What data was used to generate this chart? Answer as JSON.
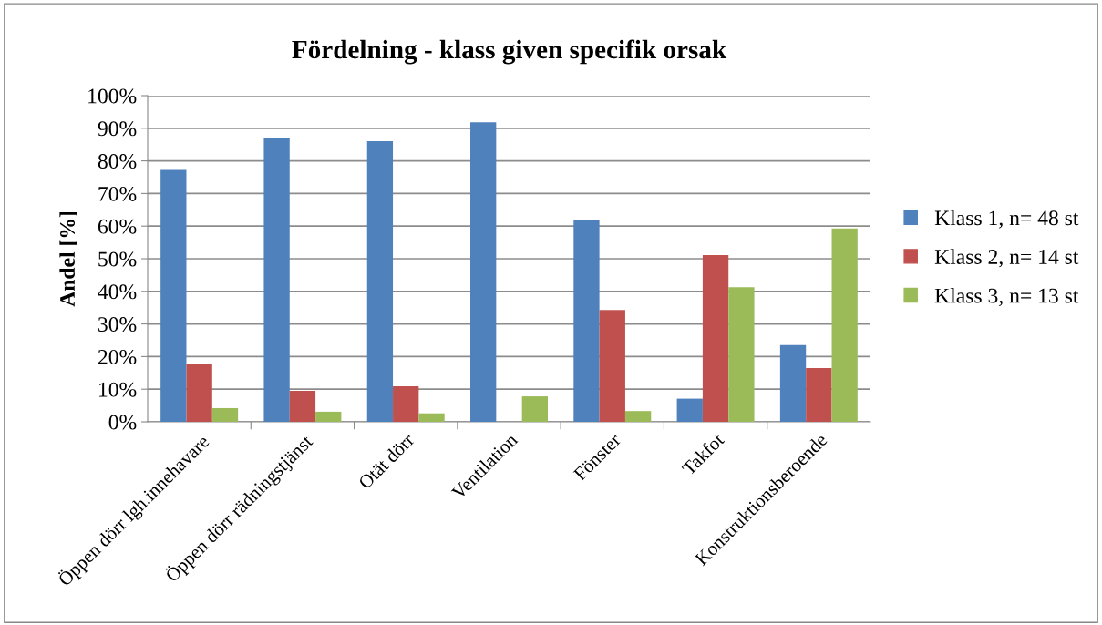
{
  "chart_data": {
    "type": "bar",
    "title": "Fördelning - klass given specifik orsak",
    "ylabel": "Andel [%]",
    "categories": [
      "Öppen dörr lgh.innehavare",
      "Öppen dörr rädningstjänst",
      "Otät dörr",
      "Ventilation",
      "Fönster",
      "Takfot",
      "Konstruktionsberoende"
    ],
    "series": [
      {
        "name": "Klass 1, n= 48 st",
        "color": "#4f81bd",
        "values": [
          77.2,
          86.9,
          86.0,
          91.8,
          61.8,
          7.1,
          23.5
        ]
      },
      {
        "name": "Klass 2, n= 14 st",
        "color": "#c0504d",
        "values": [
          17.9,
          9.5,
          10.9,
          0,
          34.3,
          51.1,
          16.5
        ]
      },
      {
        "name": "Klass 3, n= 13 st",
        "color": "#9bbb59",
        "values": [
          4.2,
          3.1,
          2.6,
          7.8,
          3.3,
          41.3,
          59.3
        ]
      }
    ],
    "ylim": [
      0,
      100
    ],
    "yticks": [
      {
        "value": 0,
        "label": "0%"
      },
      {
        "value": 10,
        "label": "10%"
      },
      {
        "value": 20,
        "label": "20%"
      },
      {
        "value": 30,
        "label": "30%"
      },
      {
        "value": 40,
        "label": "40%"
      },
      {
        "value": 50,
        "label": "50%"
      },
      {
        "value": 60,
        "label": "60%"
      },
      {
        "value": 70,
        "label": "70%"
      },
      {
        "value": 80,
        "label": "80%"
      },
      {
        "value": 90,
        "label": "90%"
      },
      {
        "value": 100,
        "label": "100%"
      }
    ],
    "grid": "y",
    "legend": "right"
  }
}
